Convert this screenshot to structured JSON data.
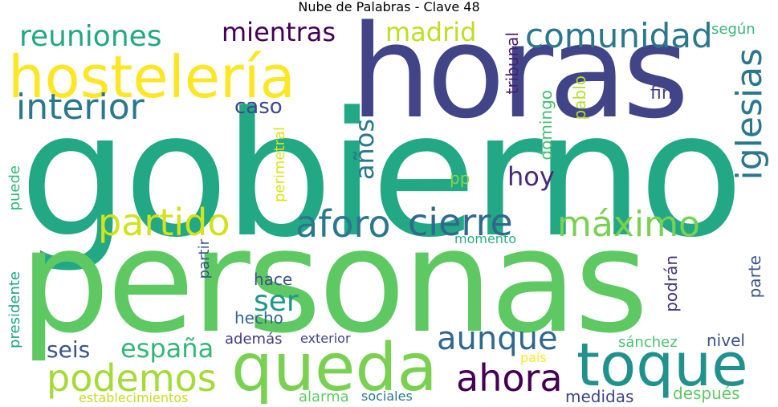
{
  "title": "Nube de Palabras - Clave 48",
  "words": {
    "personas": {
      "text": "personas",
      "color": "#5ec962"
    },
    "gobierno": {
      "text": "gobierno",
      "color": "#22a884"
    },
    "horas": {
      "text": "horas",
      "color": "#414487"
    },
    "hosteleria": {
      "text": "hostelería",
      "color": "#fde725"
    },
    "queda": {
      "text": "queda",
      "color": "#7ad151"
    },
    "toque": {
      "text": "toque",
      "color": "#21918c"
    },
    "interior": {
      "text": "interior",
      "color": "#2a788e"
    },
    "comunidad": {
      "text": "comunidad",
      "color": "#2a788e"
    },
    "reuniones": {
      "text": "reuniones",
      "color": "#22a884"
    },
    "mientras": {
      "text": "mientras",
      "color": "#440154"
    },
    "madrid": {
      "text": "madrid",
      "color": "#bddf26"
    },
    "iglesias": {
      "text": "iglesias",
      "color": "#2a788e"
    },
    "partido": {
      "text": "partido",
      "color": "#d2e21b"
    },
    "aforo": {
      "text": "aforo",
      "color": "#2a788e"
    },
    "cierre": {
      "text": "cierre",
      "color": "#31688e"
    },
    "maximo": {
      "text": "máximo",
      "color": "#7ad151"
    },
    "podemos": {
      "text": "podemos",
      "color": "#a5db36"
    },
    "ahora": {
      "text": "ahora",
      "color": "#440154"
    },
    "aunque": {
      "text": "aunque",
      "color": "#31688e"
    },
    "espana": {
      "text": "españa",
      "color": "#35b779"
    },
    "seis": {
      "text": "seis",
      "color": "#3b528b"
    },
    "ser": {
      "text": "ser",
      "color": "#1f988b"
    },
    "hoy": {
      "text": "hoy",
      "color": "#482878"
    },
    "anos": {
      "text": "años",
      "color": "#2a788e"
    },
    "caso": {
      "text": "caso",
      "color": "#3e4989"
    },
    "tribunal": {
      "text": "tribunal",
      "color": "#481f70"
    },
    "domingo": {
      "text": "domingo",
      "color": "#44bf70"
    },
    "pablo": {
      "text": "pablo",
      "color": "#b5de2b"
    },
    "fin": {
      "text": "fin",
      "color": "#433e85"
    },
    "segun": {
      "text": "según",
      "color": "#35b779"
    },
    "perimetral": {
      "text": "perimetral",
      "color": "#dde318"
    },
    "pp": {
      "text": "pp",
      "color": "#86d549"
    },
    "puede": {
      "text": "puede",
      "color": "#35b779"
    },
    "presidente": {
      "text": "presidente",
      "color": "#20a386"
    },
    "partir": {
      "text": "partir",
      "color": "#3b528b"
    },
    "hace": {
      "text": "hace",
      "color": "#3b528b"
    },
    "hecho": {
      "text": "hecho",
      "color": "#31688e"
    },
    "momento": {
      "text": "momento",
      "color": "#2ab07f"
    },
    "podran": {
      "text": "podrán",
      "color": "#46327e"
    },
    "parte": {
      "text": "parte",
      "color": "#3b528b"
    },
    "ademas": {
      "text": "además",
      "color": "#443983"
    },
    "exterior": {
      "text": "exterior",
      "color": "#414487"
    },
    "sanchez": {
      "text": "sánchez",
      "color": "#4ac16d"
    },
    "nivel": {
      "text": "nivel",
      "color": "#3b528b"
    },
    "pais": {
      "text": "país",
      "color": "#fde725"
    },
    "establecimientos": {
      "text": "establecimientos",
      "color": "#c2df23"
    },
    "alarma": {
      "text": "alarma",
      "color": "#5ec962"
    },
    "sociales": {
      "text": "sociales",
      "color": "#2a788e"
    },
    "medidas": {
      "text": "medidas",
      "color": "#414487"
    },
    "despues": {
      "text": "después",
      "color": "#5ec962"
    }
  }
}
